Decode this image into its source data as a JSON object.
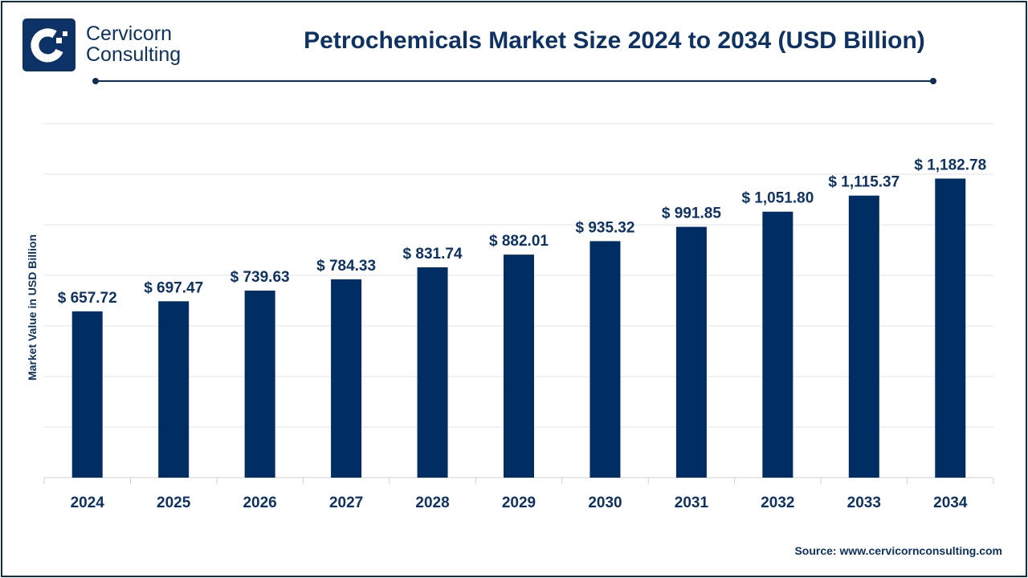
{
  "brand": {
    "line1": "Cervicorn",
    "line2": "Consulting"
  },
  "source": "Source: www.cervicornconsulting.com",
  "chart_data": {
    "type": "bar",
    "title": "Petrochemicals Market Size 2024 to 2034 (USD Billion)",
    "xlabel": "",
    "ylabel": "Market Value in USD Billion",
    "categories": [
      "2024",
      "2025",
      "2026",
      "2027",
      "2028",
      "2029",
      "2030",
      "2031",
      "2032",
      "2033",
      "2034"
    ],
    "values": [
      657.72,
      697.47,
      739.63,
      784.33,
      831.74,
      882.01,
      935.32,
      991.85,
      1051.8,
      1115.37,
      1182.78
    ],
    "data_labels": [
      "$ 657.72",
      "$ 697.47",
      "$ 739.63",
      "$ 784.33",
      "$ 831.74",
      "$ 882.01",
      "$ 935.32",
      "$ 991.85",
      "$ 1,051.80",
      "$ 1,115.37",
      "$ 1,182.78"
    ],
    "ylim": [
      0,
      1400
    ],
    "grid": true,
    "bar_color": "#002e64"
  }
}
